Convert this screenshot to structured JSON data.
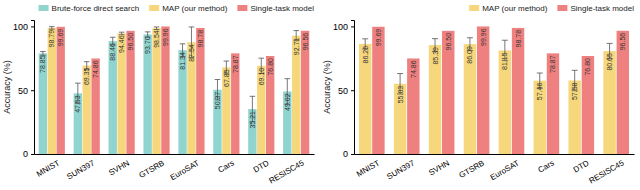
{
  "chart_data": [
    {
      "type": "bar",
      "y_label": "Accuracy (%)",
      "categories": [
        "MNIST",
        "SUN397",
        "SVHN",
        "GTSRB",
        "EuroSAT",
        "Cars",
        "DTD",
        "RESISC45"
      ],
      "series": [
        {
          "name": "Brute-force direct search",
          "color": "#8fd4cf",
          "values": [
            78.85,
            47.53,
            88.46,
            93.7,
            81.34,
            50.37,
            35.21,
            49.02
          ],
          "value_labels": [
            "78.85",
            "47.53",
            "88.46",
            "93.70",
            "81.34",
            "50.37",
            "35.21",
            "49.02"
          ],
          "errors": [
            1.5,
            8,
            3,
            2,
            5,
            8,
            10,
            10
          ]
        },
        {
          "name": "MAP (our method)",
          "color": "#f6d77c",
          "values": [
            98.79,
            69.35,
            94.46,
            98.54,
            87.54,
            67.85,
            69.1,
            92.71
          ],
          "value_labels": [
            "98.79",
            "69.35",
            "94.46",
            "98.54",
            "87.54",
            "67.85",
            "69.10",
            "92.71"
          ],
          "errors": [
            1,
            3,
            1,
            1,
            12,
            5,
            6,
            4
          ]
        },
        {
          "name": "Single-task model",
          "color": "#ef8080",
          "values": [
            99.69,
            74.86,
            96.5,
            99.96,
            98.78,
            78.87,
            76.8,
            96.56
          ],
          "value_labels": [
            "99.69",
            "74.86",
            "96.50",
            "99.96",
            "98.78",
            "78.87",
            "76.80",
            "96.56"
          ]
        }
      ],
      "ylim": [
        0,
        105
      ],
      "yticks": [
        0,
        50,
        100
      ],
      "legend": "top",
      "data_labels": true
    },
    {
      "type": "bar",
      "y_label": "Accuracy (%)",
      "categories": [
        "MNIST",
        "SUN397",
        "SVHN",
        "GTSRB",
        "EuroSAT",
        "Cars",
        "DTD",
        "RESISC45"
      ],
      "series": [
        {
          "name": "MAP (our method)",
          "color": "#f6d77c",
          "values": [
            86.26,
            55.03,
            85.39,
            86.09,
            81.15,
            57.46,
            57.58,
            80.65
          ],
          "value_labels": [
            "86.26",
            "55.03",
            "85.39",
            "86.09",
            "81.15",
            "57.46",
            "57.58",
            "80.65"
          ],
          "errors": [
            4,
            8,
            5,
            5,
            8,
            6,
            8,
            6
          ]
        },
        {
          "name": "Single-task model",
          "color": "#ef8080",
          "values": [
            99.69,
            74.86,
            96.5,
            99.96,
            98.78,
            78.87,
            76.8,
            96.56
          ],
          "value_labels": [
            "99.69",
            "74.86",
            "96.50",
            "99.96",
            "98.78",
            "78.87",
            "76.80",
            "96.56"
          ]
        }
      ],
      "ylim": [
        0,
        105
      ],
      "yticks": [
        0,
        50,
        100
      ],
      "legend": "top",
      "data_labels": true
    }
  ]
}
